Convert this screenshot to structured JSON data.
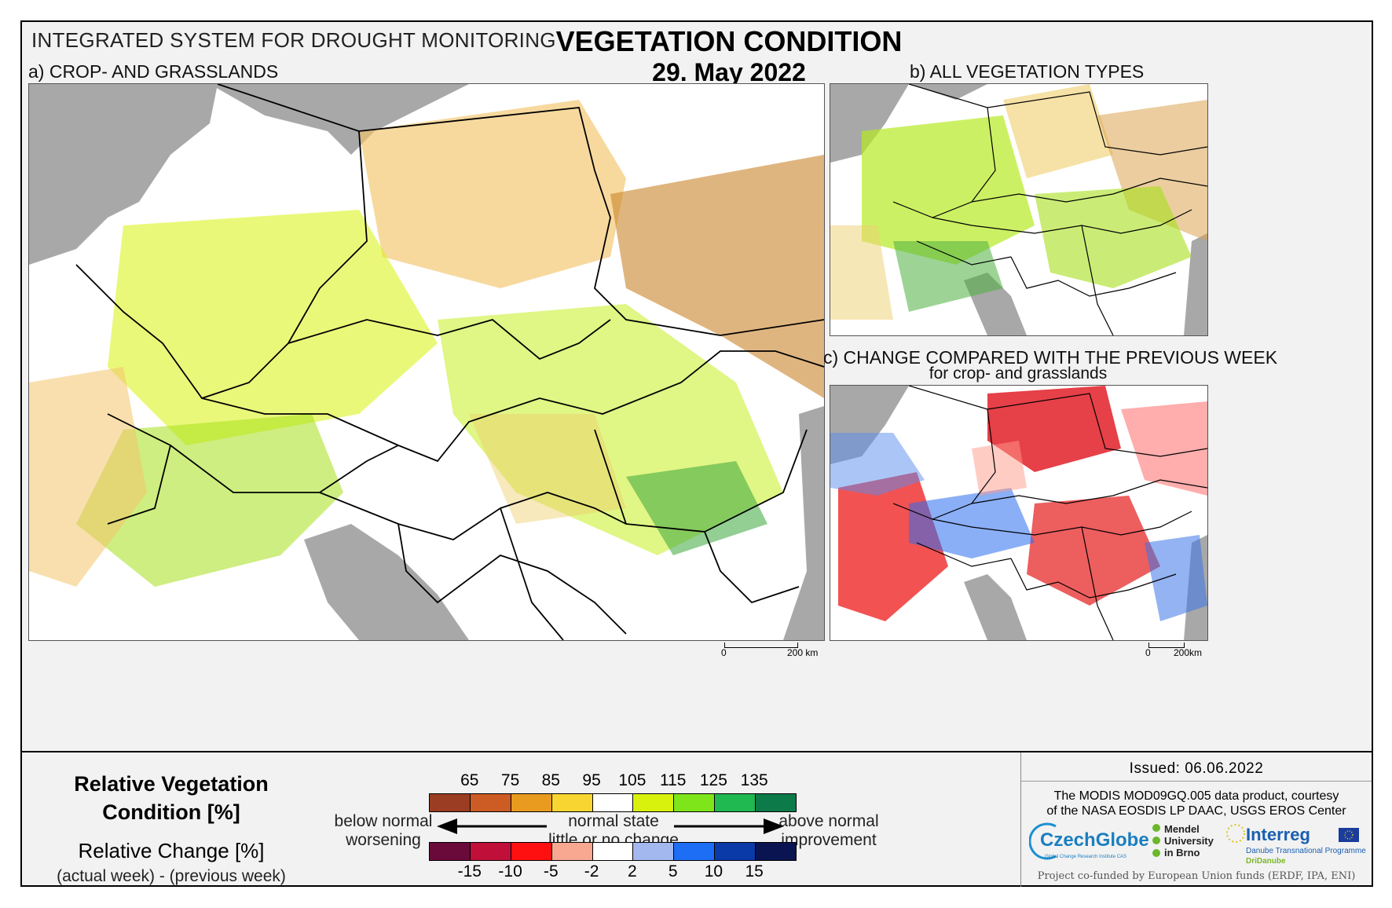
{
  "header": {
    "system": "INTEGRATED SYSTEM FOR DROUGHT MONITORING",
    "title": "VEGETATION CONDITION",
    "date": "29. May 2022"
  },
  "panels": {
    "a": {
      "label": "a) CROP- AND GRASSLANDS",
      "scale_zero": "0",
      "scale_max": "200 km"
    },
    "b": {
      "label": "b) ALL VEGETATION TYPES"
    },
    "c": {
      "label": "c) CHANGE COMPARED WITH THE PREVIOUS WEEK",
      "sublabel": "for crop- and grasslands",
      "scale_zero": "0",
      "scale_max": "200km"
    }
  },
  "legend": {
    "rvc_title": "Relative Vegetation Condition [%]",
    "rc_title": "Relative Change [%]",
    "rc_sub": "(actual week) - (previous week)",
    "upper_ticks": [
      "65",
      "75",
      "85",
      "95",
      "105",
      "115",
      "125",
      "135"
    ],
    "upper_colors": [
      "#9a3d22",
      "#cc5c23",
      "#e89b1f",
      "#f8d531",
      "#ffffff",
      "#d8f20d",
      "#7ee51a",
      "#1fb851",
      "#0d7a4a"
    ],
    "lower_ticks": [
      "-15",
      "-10",
      "-5",
      "-2",
      "2",
      "5",
      "10",
      "15"
    ],
    "lower_colors": [
      "#6a0a3a",
      "#c0103a",
      "#ff1010",
      "#f8a890",
      "#ffffff",
      "#a4b8f0",
      "#1d6ef5",
      "#0a3aa8",
      "#0a1450"
    ],
    "below_normal": "below normal",
    "worsening": "worsening",
    "normal_state": "normal state",
    "little_change": "little or no change",
    "above_normal": "above normal",
    "improvement": "improvement"
  },
  "footer": {
    "issued": "Issued: 06.06.2022",
    "credit_line1": "The MODIS MOD09GQ.005 data product, courtesy",
    "credit_line2": "of the NASA EOSDIS LP DAAC, USGS EROS Center",
    "czechglobe": "CzechGlobe",
    "czechglobe_sub": "Global Change Research Institute CAS",
    "mendel": "Mendel University in Brno",
    "interreg": "Interreg",
    "interreg_sub": "Danube Transnational Programme",
    "dridanube": "DriDanube",
    "funded": "Project co-funded by European Union funds (ERDF, IPA, ENI)"
  },
  "colors": {
    "sea": "#a8a8a8",
    "border": "#000000"
  }
}
